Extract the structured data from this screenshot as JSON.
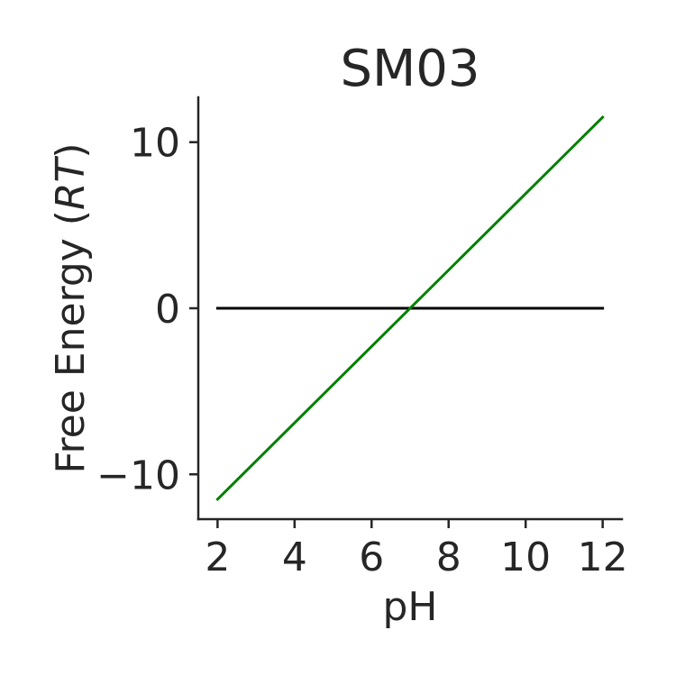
{
  "chart_data": {
    "type": "line",
    "title": "SM03",
    "xlabel": "pH",
    "ylabel": {
      "prefix": "Free Energy (",
      "italic": "RT",
      "suffix": ")"
    },
    "xlim": [
      1.5,
      12.5
    ],
    "ylim": [
      -12.7,
      12.7
    ],
    "x_ticks": [
      2,
      4,
      6,
      8,
      10,
      12
    ],
    "x_tick_labels": [
      "2",
      "4",
      "6",
      "8",
      "10",
      "12"
    ],
    "y_ticks": [
      -10,
      0,
      10
    ],
    "y_tick_labels": [
      "−10",
      "0",
      "10"
    ],
    "grid": false,
    "legend": "none",
    "series": [
      {
        "color": "#000000",
        "x": [
          2,
          12
        ],
        "y": [
          0,
          0
        ]
      },
      {
        "color": "#008000",
        "x": [
          2,
          12
        ],
        "y": [
          -11.5,
          11.5
        ]
      }
    ],
    "axis_color": "#262626"
  }
}
